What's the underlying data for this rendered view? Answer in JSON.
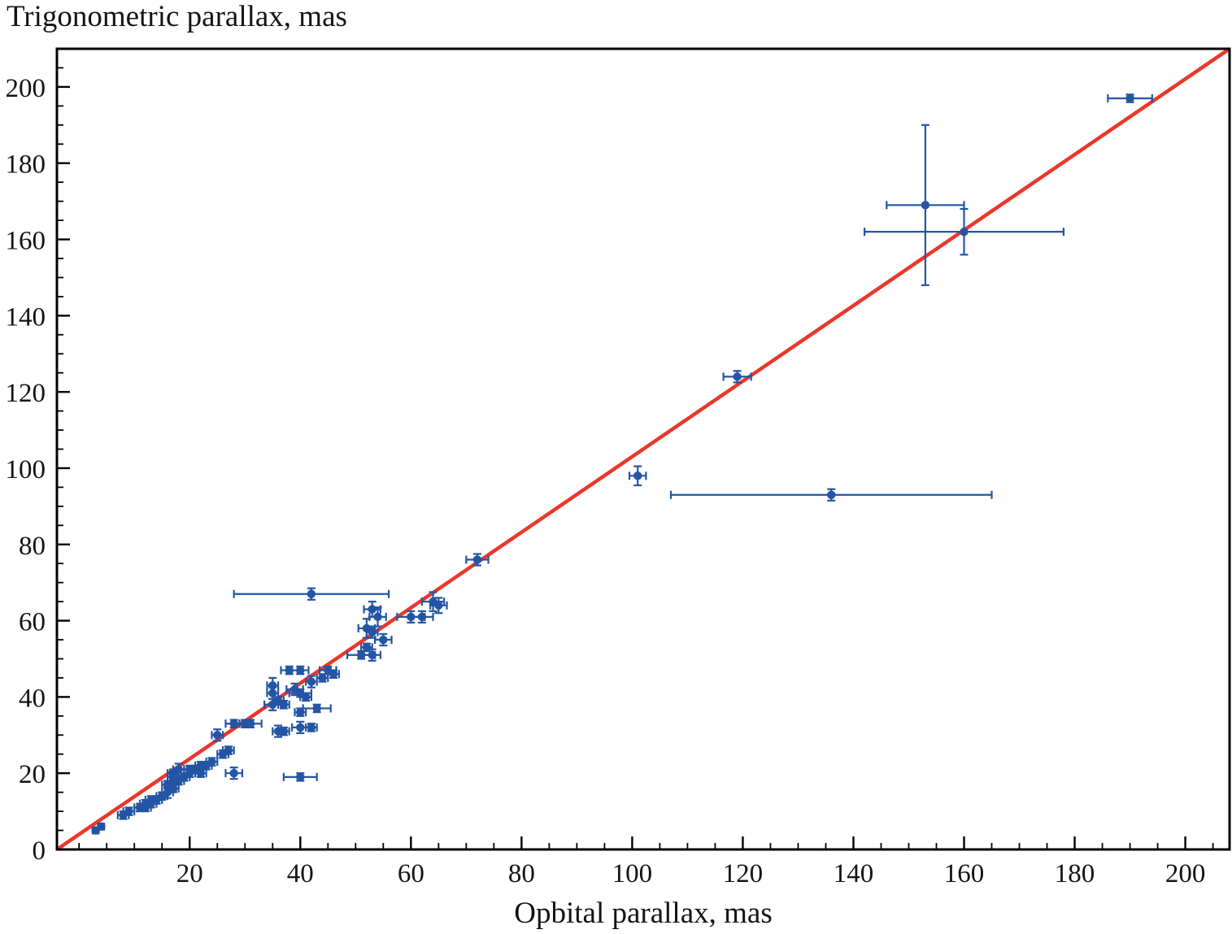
{
  "chart_data": {
    "type": "scatter",
    "title": "",
    "xlabel": "Opbital parallax, mas",
    "ylabel": "Trigonometric parallax, mas",
    "xlim": [
      -4,
      208
    ],
    "ylim": [
      0,
      210
    ],
    "x_major_ticks": [
      20,
      40,
      60,
      80,
      100,
      120,
      140,
      160,
      180,
      200
    ],
    "y_major_ticks": [
      0,
      20,
      40,
      60,
      80,
      100,
      120,
      140,
      160,
      180,
      200
    ],
    "minor_tick_step": 5,
    "grid": false,
    "legend": "none",
    "colors": {
      "points": "#2355a4",
      "error_bars": "#2355a4",
      "fit_line": "#ea372c",
      "axes": "#000000",
      "background": "#ffffff"
    },
    "fit_line": {
      "equation": "y = x",
      "x1": -4,
      "y1": 0,
      "x2": 208,
      "y2": 210
    },
    "point_format": [
      "x",
      "y",
      "xerr",
      "yerr"
    ],
    "points": [
      [
        190,
        197,
        4,
        1
      ],
      [
        153,
        169,
        7,
        21
      ],
      [
        160,
        162,
        18,
        6
      ],
      [
        119,
        124,
        2.5,
        1.5
      ],
      [
        101,
        98,
        1.5,
        2.5
      ],
      [
        136,
        93,
        29,
        1.5
      ],
      [
        72,
        76,
        2,
        1.5
      ],
      [
        42,
        67,
        14,
        1.5
      ],
      [
        64,
        65,
        2,
        2.5
      ],
      [
        65,
        64,
        1.5,
        2
      ],
      [
        53,
        63,
        1.5,
        2
      ],
      [
        54,
        61,
        1.5,
        2.5
      ],
      [
        60,
        61,
        2.5,
        1.5
      ],
      [
        62,
        61,
        2,
        1.5
      ],
      [
        52,
        58,
        1.5,
        2.5
      ],
      [
        53,
        57,
        1,
        1.5
      ],
      [
        55,
        55,
        1.5,
        1.5
      ],
      [
        52,
        53,
        1,
        1
      ],
      [
        51,
        51,
        2.5,
        1
      ],
      [
        53,
        51,
        1.5,
        1.5
      ],
      [
        45,
        47,
        1.5,
        1
      ],
      [
        46,
        46,
        1,
        1
      ],
      [
        38,
        47,
        1.5,
        1
      ],
      [
        40,
        47,
        1.5,
        1
      ],
      [
        44,
        45,
        1,
        1
      ],
      [
        42,
        44,
        1,
        1.5
      ],
      [
        35,
        43,
        1,
        2
      ],
      [
        39,
        42,
        1.5,
        1.5
      ],
      [
        40,
        41,
        2,
        1
      ],
      [
        41,
        40,
        1,
        1
      ],
      [
        35,
        41,
        1,
        1.5
      ],
      [
        36,
        39,
        1,
        1
      ],
      [
        35,
        38,
        1.5,
        1.5
      ],
      [
        37,
        38,
        1,
        1
      ],
      [
        43,
        37,
        2.5,
        1
      ],
      [
        40,
        36,
        1,
        1
      ],
      [
        40,
        32,
        1.5,
        1.5
      ],
      [
        42,
        32,
        1,
        1
      ],
      [
        36,
        31,
        1,
        1.5
      ],
      [
        37,
        31,
        1,
        1
      ],
      [
        28,
        33,
        1.5,
        1
      ],
      [
        30,
        33,
        1,
        1
      ],
      [
        31,
        33,
        2,
        1
      ],
      [
        25,
        30,
        1,
        1.5
      ],
      [
        27,
        26,
        1,
        1
      ],
      [
        26,
        25,
        1,
        1
      ],
      [
        28,
        20,
        1.5,
        1.5
      ],
      [
        40,
        19,
        3,
        1
      ],
      [
        24,
        23,
        1,
        1
      ],
      [
        23,
        22,
        1,
        1
      ],
      [
        22,
        22,
        1,
        1
      ],
      [
        21,
        21,
        1.5,
        1
      ],
      [
        22,
        20,
        1,
        1
      ],
      [
        20,
        21,
        1,
        1
      ],
      [
        20,
        20,
        1,
        1
      ],
      [
        19,
        19,
        1,
        1
      ],
      [
        18,
        21,
        1,
        1.5
      ],
      [
        17,
        20,
        1,
        1
      ],
      [
        17,
        19,
        1,
        1
      ],
      [
        18,
        18,
        1,
        1
      ],
      [
        17,
        17,
        1,
        1.5
      ],
      [
        16,
        17,
        1,
        1
      ],
      [
        17,
        16,
        1,
        1
      ],
      [
        16,
        15,
        1,
        1.5
      ],
      [
        15,
        14,
        1,
        1
      ],
      [
        14,
        13,
        1,
        1
      ],
      [
        13,
        13,
        1,
        1
      ],
      [
        13,
        12,
        1,
        1
      ],
      [
        12,
        12,
        1,
        1
      ],
      [
        12,
        11,
        1,
        1
      ],
      [
        11,
        11,
        1,
        1
      ],
      [
        9,
        10,
        1,
        1
      ],
      [
        8,
        9,
        1,
        1
      ],
      [
        4,
        6,
        0.5,
        0.5
      ],
      [
        3,
        5,
        0.5,
        0.5
      ]
    ]
  }
}
